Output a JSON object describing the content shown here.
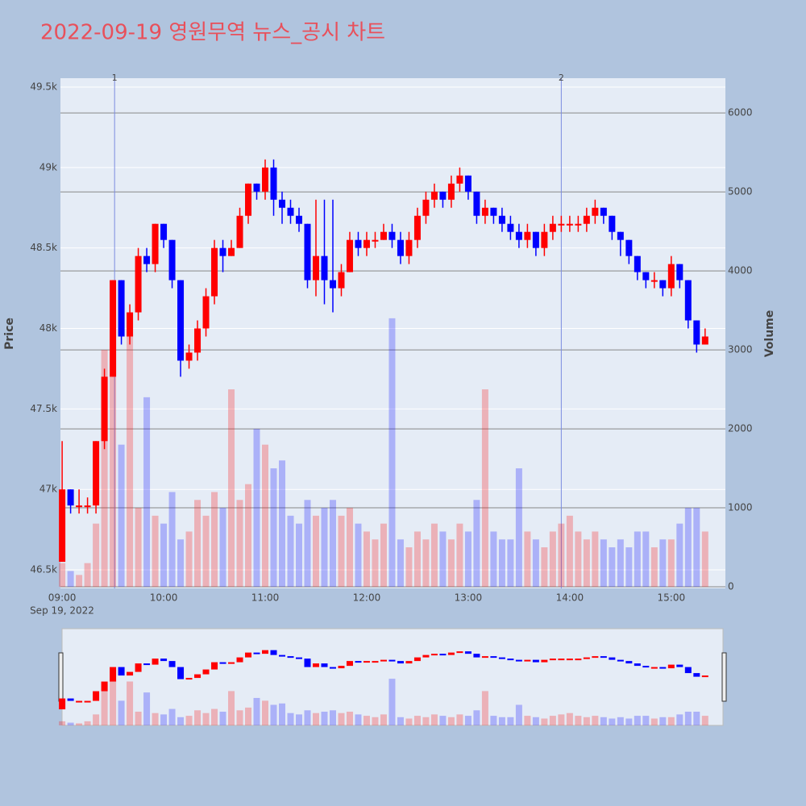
{
  "chart_data": {
    "type": "candlestick",
    "title": "2022-09-19 영원무역 뉴스_공시 차트",
    "y_label": "Price",
    "y2_label": "Volume",
    "x_date_label": "Sep 19, 2022",
    "increasing_color": "#ff0000",
    "decreasing_color": "#0000ff",
    "x": [
      "09:00",
      "09:05",
      "09:10",
      "09:15",
      "09:20",
      "09:25",
      "09:30",
      "09:35",
      "09:40",
      "09:45",
      "09:50",
      "09:55",
      "10:00",
      "10:05",
      "10:10",
      "10:15",
      "10:20",
      "10:25",
      "10:30",
      "10:35",
      "10:40",
      "10:45",
      "10:50",
      "10:55",
      "11:00",
      "11:05",
      "11:10",
      "11:15",
      "11:20",
      "11:25",
      "11:30",
      "11:35",
      "11:40",
      "11:45",
      "11:50",
      "11:55",
      "12:00",
      "12:05",
      "12:10",
      "12:15",
      "12:20",
      "12:25",
      "12:30",
      "12:35",
      "12:40",
      "12:45",
      "12:50",
      "12:55",
      "13:00",
      "13:05",
      "13:10",
      "13:15",
      "13:20",
      "13:25",
      "13:30",
      "13:35",
      "13:40",
      "13:45",
      "13:50",
      "13:55",
      "14:00",
      "14:05",
      "14:10",
      "14:15",
      "14:20",
      "14:25",
      "14:30",
      "14:35",
      "14:40",
      "14:45",
      "14:50",
      "14:55",
      "15:00",
      "15:05",
      "15:10",
      "15:15",
      "15:20"
    ],
    "open": [
      46550,
      47000,
      46900,
      46900,
      46900,
      47300,
      47700,
      48300,
      47950,
      48100,
      48450,
      48400,
      48650,
      48550,
      48300,
      47800,
      47850,
      48000,
      48200,
      48500,
      48450,
      48500,
      48700,
      48900,
      48850,
      49000,
      48800,
      48750,
      48700,
      48650,
      48300,
      48450,
      48300,
      48250,
      48350,
      48550,
      48500,
      48550,
      48550,
      48600,
      48550,
      48450,
      48550,
      48700,
      48800,
      48850,
      48800,
      48900,
      48950,
      48850,
      48700,
      48750,
      48700,
      48650,
      48600,
      48550,
      48600,
      48500,
      48600,
      48650,
      48650,
      48650,
      48650,
      48700,
      48750,
      48700,
      48600,
      48550,
      48450,
      48350,
      48300,
      48300,
      48250,
      48400,
      48300,
      48050,
      47900
    ],
    "high": [
      47300,
      47000,
      47000,
      46950,
      47300,
      47750,
      48300,
      48300,
      48150,
      48500,
      48500,
      48650,
      48650,
      48550,
      48300,
      47900,
      48050,
      48250,
      48550,
      48550,
      48550,
      48750,
      48900,
      48900,
      49050,
      49050,
      48850,
      48800,
      48750,
      48650,
      48800,
      48800,
      48800,
      48400,
      48600,
      48600,
      48600,
      48600,
      48650,
      48650,
      48600,
      48600,
      48750,
      48850,
      48900,
      48850,
      48950,
      49000,
      48950,
      48850,
      48800,
      48750,
      48750,
      48700,
      48650,
      48650,
      48600,
      48650,
      48700,
      48700,
      48700,
      48700,
      48750,
      48800,
      48750,
      48700,
      48600,
      48550,
      48450,
      48350,
      48350,
      48300,
      48450,
      48400,
      48300,
      48050,
      48000
    ],
    "low": [
      46550,
      46850,
      46850,
      46850,
      46850,
      47250,
      47700,
      47900,
      47900,
      48050,
      48350,
      48350,
      48500,
      48250,
      47700,
      47750,
      47800,
      47950,
      48150,
      48350,
      48450,
      48500,
      48650,
      48800,
      48800,
      48700,
      48650,
      48650,
      48600,
      48250,
      48200,
      48150,
      48100,
      48200,
      48350,
      48450,
      48450,
      48500,
      48550,
      48500,
      48400,
      48400,
      48500,
      48650,
      48750,
      48750,
      48750,
      48850,
      48800,
      48650,
      48650,
      48650,
      48600,
      48550,
      48500,
      48500,
      48450,
      48450,
      48550,
      48600,
      48600,
      48600,
      48600,
      48650,
      48650,
      48550,
      48450,
      48400,
      48300,
      48250,
      48250,
      48200,
      48200,
      48250,
      48000,
      47850,
      47900
    ],
    "close": [
      47000,
      46900,
      46900,
      46900,
      47300,
      47700,
      48300,
      47950,
      48100,
      48450,
      48400,
      48650,
      48550,
      48300,
      47800,
      47850,
      48000,
      48200,
      48500,
      48450,
      48500,
      48700,
      48900,
      48850,
      49000,
      48800,
      48750,
      48700,
      48650,
      48300,
      48450,
      48300,
      48250,
      48350,
      48550,
      48500,
      48550,
      48550,
      48600,
      48550,
      48450,
      48550,
      48700,
      48800,
      48850,
      48800,
      48900,
      48950,
      48850,
      48700,
      48750,
      48700,
      48650,
      48600,
      48550,
      48600,
      48500,
      48600,
      48650,
      48650,
      48650,
      48650,
      48700,
      48750,
      48700,
      48600,
      48550,
      48450,
      48350,
      48300,
      48300,
      48250,
      48400,
      48300,
      48050,
      47900,
      47950
    ],
    "volume": [
      300,
      200,
      150,
      300,
      800,
      3000,
      3400,
      1800,
      3200,
      1000,
      2400,
      900,
      800,
      1200,
      600,
      700,
      1100,
      900,
      1200,
      1000,
      2500,
      1100,
      1300,
      2000,
      1800,
      1500,
      1600,
      900,
      800,
      1100,
      900,
      1000,
      1100,
      900,
      1000,
      800,
      700,
      600,
      800,
      3400,
      600,
      500,
      700,
      600,
      800,
      700,
      600,
      800,
      700,
      1100,
      2500,
      700,
      600,
      600,
      1500,
      700,
      600,
      500,
      700,
      800,
      900,
      700,
      600,
      700,
      600,
      500,
      600,
      500,
      700,
      700,
      500,
      600,
      600,
      800,
      1000,
      1000,
      700
    ],
    "xlim": [
      "08:59",
      "15:32"
    ],
    "xticks": [
      "09:00",
      "10:00",
      "11:00",
      "12:00",
      "13:00",
      "14:00",
      "15:00"
    ],
    "ylim": [
      46385,
      49555
    ],
    "yticks": [
      {
        "value": 46500,
        "label": "46.5k"
      },
      {
        "value": 47000,
        "label": "47k"
      },
      {
        "value": 47500,
        "label": "47.5k"
      },
      {
        "value": 48000,
        "label": "48k"
      },
      {
        "value": 48500,
        "label": "48.5k"
      },
      {
        "value": 49000,
        "label": "49k"
      },
      {
        "value": 49500,
        "label": "49.5k"
      }
    ],
    "y2lim": [
      -20,
      6440
    ],
    "y2ticks": [
      0,
      1000,
      2000,
      3000,
      4000,
      5000,
      6000
    ],
    "annotations": [
      {
        "x": "09:31",
        "label": "1"
      },
      {
        "x": "13:55",
        "label": "2"
      }
    ]
  }
}
